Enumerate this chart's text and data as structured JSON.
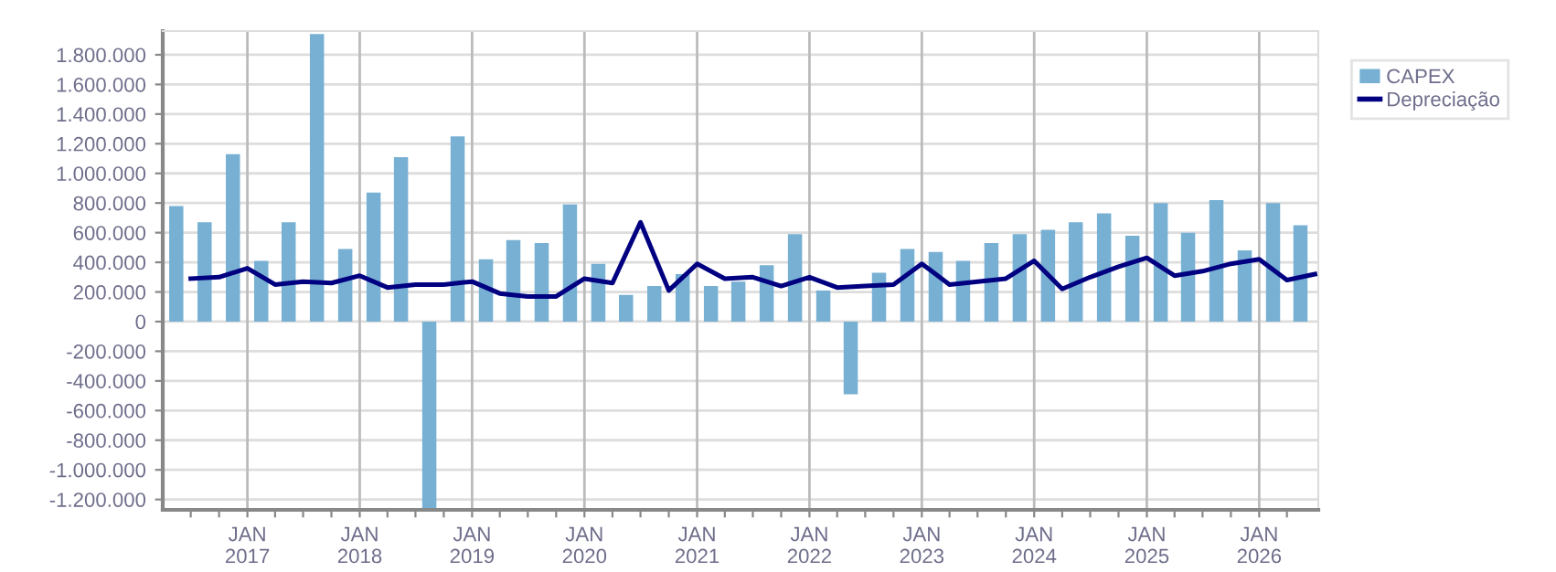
{
  "chart_data": {
    "type": "bar",
    "ylim": [
      -1270000,
      1960000
    ],
    "yticks": [
      {
        "value": -1200000,
        "label": "-1.200.000"
      },
      {
        "value": -1000000,
        "label": "-1.000.000"
      },
      {
        "value": -800000,
        "label": "-800.000"
      },
      {
        "value": -600000,
        "label": "-600.000"
      },
      {
        "value": -400000,
        "label": "-400.000"
      },
      {
        "value": -200000,
        "label": "-200.000"
      },
      {
        "value": 0,
        "label": "0"
      },
      {
        "value": 200000,
        "label": "200.000"
      },
      {
        "value": 400000,
        "label": "400.000"
      },
      {
        "value": 600000,
        "label": "600.000"
      },
      {
        "value": 800000,
        "label": "800.000"
      },
      {
        "value": 1000000,
        "label": "1.000.000"
      },
      {
        "value": 1200000,
        "label": "1.200.000"
      },
      {
        "value": 1400000,
        "label": "1.400.000"
      },
      {
        "value": 1600000,
        "label": "1.600.000"
      },
      {
        "value": 1800000,
        "label": "1.800.000"
      }
    ],
    "xlim": [
      "2016-04-01",
      "2026-07-12"
    ],
    "xticks": [
      {
        "value": "2016-07-01",
        "label": null
      },
      {
        "value": "2016-10-01",
        "label": null
      },
      {
        "value": "2017-01-01",
        "label": "JAN\n2017"
      },
      {
        "value": "2017-04-01",
        "label": null
      },
      {
        "value": "2017-07-01",
        "label": null
      },
      {
        "value": "2017-10-01",
        "label": null
      },
      {
        "value": "2018-01-01",
        "label": "JAN\n2018"
      },
      {
        "value": "2018-04-01",
        "label": null
      },
      {
        "value": "2018-07-01",
        "label": null
      },
      {
        "value": "2018-10-01",
        "label": null
      },
      {
        "value": "2019-01-01",
        "label": "JAN\n2019"
      },
      {
        "value": "2019-04-01",
        "label": null
      },
      {
        "value": "2019-07-01",
        "label": null
      },
      {
        "value": "2019-10-01",
        "label": null
      },
      {
        "value": "2020-01-01",
        "label": "JAN\n2020"
      },
      {
        "value": "2020-04-01",
        "label": null
      },
      {
        "value": "2020-07-01",
        "label": null
      },
      {
        "value": "2020-10-01",
        "label": null
      },
      {
        "value": "2021-01-01",
        "label": "JAN\n2021"
      },
      {
        "value": "2021-04-01",
        "label": null
      },
      {
        "value": "2021-07-01",
        "label": null
      },
      {
        "value": "2021-10-01",
        "label": null
      },
      {
        "value": "2022-01-01",
        "label": "JAN\n2022"
      },
      {
        "value": "2022-04-01",
        "label": null
      },
      {
        "value": "2022-07-01",
        "label": null
      },
      {
        "value": "2022-10-01",
        "label": null
      },
      {
        "value": "2023-01-01",
        "label": "JAN\n2023"
      },
      {
        "value": "2023-04-01",
        "label": null
      },
      {
        "value": "2023-07-01",
        "label": null
      },
      {
        "value": "2023-10-01",
        "label": null
      },
      {
        "value": "2024-01-01",
        "label": "JAN\n2024"
      },
      {
        "value": "2024-04-01",
        "label": null
      },
      {
        "value": "2024-07-01",
        "label": null
      },
      {
        "value": "2024-10-01",
        "label": null
      },
      {
        "value": "2025-01-01",
        "label": "JAN\n2025"
      },
      {
        "value": "2025-04-01",
        "label": null
      },
      {
        "value": "2025-07-01",
        "label": null
      },
      {
        "value": "2025-10-01",
        "label": null
      },
      {
        "value": "2026-01-01",
        "label": "JAN\n2026"
      },
      {
        "value": "2026-04-01",
        "label": null
      }
    ],
    "grid": true,
    "legend": "right",
    "series": [
      {
        "name": "CAPEX",
        "color": "#77b0d3",
        "x": [
          "2016-05-15",
          "2016-08-15",
          "2016-11-15",
          "2017-02-15",
          "2017-05-15",
          "2017-08-15",
          "2017-11-15",
          "2018-02-15",
          "2018-05-15",
          "2018-08-15",
          "2018-11-15",
          "2019-02-15",
          "2019-05-15",
          "2019-08-15",
          "2019-11-15",
          "2020-02-15",
          "2020-05-15",
          "2020-08-15",
          "2020-11-15",
          "2021-02-15",
          "2021-05-15",
          "2021-08-15",
          "2021-11-15",
          "2022-02-15",
          "2022-05-15",
          "2022-08-15",
          "2022-11-15",
          "2023-02-15",
          "2023-05-15",
          "2023-08-15",
          "2023-11-15",
          "2024-02-15",
          "2024-05-15",
          "2024-08-15",
          "2024-11-15",
          "2025-02-15",
          "2025-05-15",
          "2025-08-15",
          "2025-11-15",
          "2026-02-15",
          "2026-05-15"
        ],
        "values": [
          780000,
          670000,
          1130000,
          410000,
          670000,
          1940000,
          490000,
          870000,
          1110000,
          -1270000,
          1250000,
          420000,
          550000,
          530000,
          790000,
          390000,
          180000,
          240000,
          320000,
          240000,
          270000,
          380000,
          590000,
          210000,
          -490000,
          330000,
          490000,
          470000,
          410000,
          530000,
          590000,
          620000,
          670000,
          730000,
          580000,
          800000,
          600000,
          820000,
          480000,
          800000,
          650000
        ]
      },
      {
        "name": "Depreciação",
        "type": "line",
        "color": "#000080",
        "x": [
          "2016-07-01",
          "2016-10-01",
          "2017-01-01",
          "2017-04-01",
          "2017-07-01",
          "2017-10-01",
          "2018-01-01",
          "2018-04-01",
          "2018-07-01",
          "2018-10-01",
          "2019-01-01",
          "2019-04-01",
          "2019-07-01",
          "2019-10-01",
          "2020-01-01",
          "2020-04-01",
          "2020-07-01",
          "2020-10-01",
          "2021-01-01",
          "2021-04-01",
          "2021-07-01",
          "2021-10-01",
          "2022-01-01",
          "2022-04-01",
          "2022-07-01",
          "2022-10-01",
          "2023-01-01",
          "2023-04-01",
          "2023-07-01",
          "2023-10-01",
          "2024-01-01",
          "2024-04-01",
          "2024-07-01",
          "2024-10-01",
          "2025-01-01",
          "2025-04-01",
          "2025-07-01",
          "2025-10-01",
          "2026-01-01",
          "2026-04-01",
          "2026-07-01"
        ],
        "values": [
          290000,
          300000,
          360000,
          250000,
          270000,
          260000,
          310000,
          230000,
          250000,
          250000,
          270000,
          190000,
          170000,
          170000,
          290000,
          260000,
          670000,
          210000,
          390000,
          290000,
          300000,
          240000,
          300000,
          230000,
          240000,
          250000,
          390000,
          250000,
          270000,
          290000,
          410000,
          220000,
          300000,
          370000,
          430000,
          310000,
          340000,
          390000,
          420000,
          280000,
          320000
        ]
      }
    ]
  }
}
